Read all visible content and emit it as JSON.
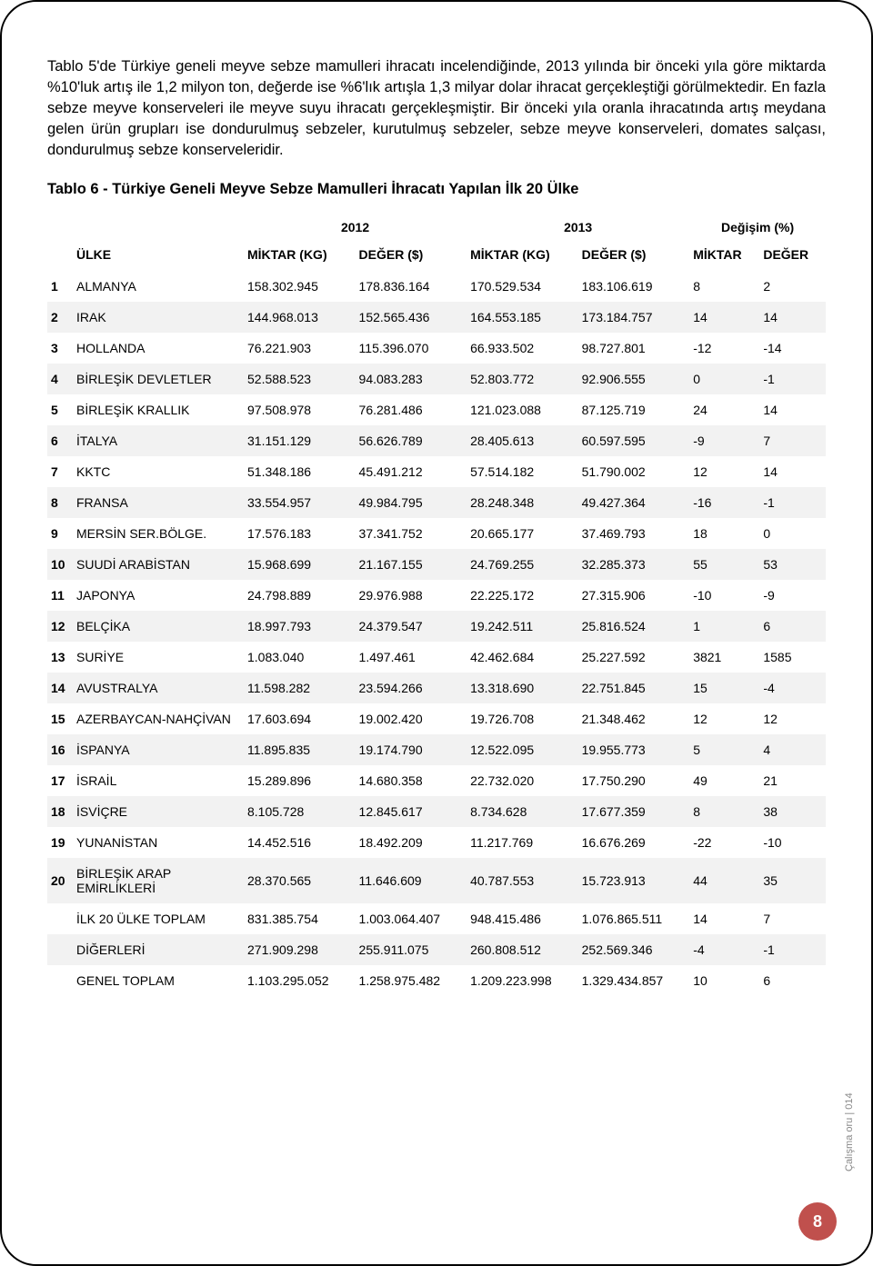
{
  "paragraph": "Tablo 5'de Türkiye geneli meyve sebze mamulleri ihracatı incelendiğinde, 2013 yılında bir önceki yıla göre miktarda %10'luk artış ile 1,2 milyon ton, değerde ise %6'lık artışla 1,3 milyar dolar ihracat gerçekleştiği görülmektedir. En fazla sebze meyve konserveleri ile meyve suyu ihracatı gerçekleşmiştir. Bir önceki yıla oranla ihracatında artış meydana gelen ürün grupları ise dondurulmuş sebzeler, kurutulmuş sebzeler, sebze meyve konserveleri, domates salçası, dondurulmuş sebze konserveleridir.",
  "table_title": "Tablo 6 - Türkiye Geneli Meyve Sebze Mamulleri İhracatı Yapılan İlk 20 Ülke",
  "year_headers": {
    "y2012": "2012",
    "y2013": "2013",
    "change": "Değişim (%)"
  },
  "col_headers": {
    "country": "ÜLKE",
    "qty_kg": "MİKTAR (KG)",
    "val_usd": "DEĞER ($)",
    "qty2_kg": "MİKTAR (KG)",
    "val2_usd": "DEĞER ($)",
    "chg_qty": "MİKTAR",
    "chg_val": "DEĞER"
  },
  "rows": [
    {
      "n": "1",
      "country": "ALMANYA",
      "q12": "158.302.945",
      "v12": "178.836.164",
      "q13": "170.529.534",
      "v13": "183.106.619",
      "cq": "8",
      "cv": "2"
    },
    {
      "n": "2",
      "country": "IRAK",
      "q12": "144.968.013",
      "v12": "152.565.436",
      "q13": "164.553.185",
      "v13": "173.184.757",
      "cq": "14",
      "cv": "14"
    },
    {
      "n": "3",
      "country": "HOLLANDA",
      "q12": "76.221.903",
      "v12": "115.396.070",
      "q13": "66.933.502",
      "v13": "98.727.801",
      "cq": "-12",
      "cv": "-14"
    },
    {
      "n": "4",
      "country": "BİRLEŞİK DEVLETLER",
      "q12": "52.588.523",
      "v12": "94.083.283",
      "q13": "52.803.772",
      "v13": "92.906.555",
      "cq": "0",
      "cv": "-1"
    },
    {
      "n": "5",
      "country": "BİRLEŞİK KRALLIK",
      "q12": "97.508.978",
      "v12": "76.281.486",
      "q13": "121.023.088",
      "v13": "87.125.719",
      "cq": "24",
      "cv": "14"
    },
    {
      "n": "6",
      "country": "İTALYA",
      "q12": "31.151.129",
      "v12": "56.626.789",
      "q13": "28.405.613",
      "v13": "60.597.595",
      "cq": "-9",
      "cv": "7"
    },
    {
      "n": "7",
      "country": "KKTC",
      "q12": "51.348.186",
      "v12": "45.491.212",
      "q13": "57.514.182",
      "v13": "51.790.002",
      "cq": "12",
      "cv": "14"
    },
    {
      "n": "8",
      "country": "FRANSA",
      "q12": "33.554.957",
      "v12": "49.984.795",
      "q13": "28.248.348",
      "v13": "49.427.364",
      "cq": "-16",
      "cv": "-1"
    },
    {
      "n": "9",
      "country": "MERSİN SER.BÖLGE.",
      "q12": "17.576.183",
      "v12": "37.341.752",
      "q13": "20.665.177",
      "v13": "37.469.793",
      "cq": "18",
      "cv": "0"
    },
    {
      "n": "10",
      "country": "SUUDİ ARABİSTAN",
      "q12": "15.968.699",
      "v12": "21.167.155",
      "q13": "24.769.255",
      "v13": "32.285.373",
      "cq": "55",
      "cv": "53"
    },
    {
      "n": "11",
      "country": "JAPONYA",
      "q12": "24.798.889",
      "v12": "29.976.988",
      "q13": "22.225.172",
      "v13": "27.315.906",
      "cq": "-10",
      "cv": "-9"
    },
    {
      "n": "12",
      "country": "BELÇİKA",
      "q12": "18.997.793",
      "v12": "24.379.547",
      "q13": "19.242.511",
      "v13": "25.816.524",
      "cq": "1",
      "cv": "6"
    },
    {
      "n": "13",
      "country": "SURİYE",
      "q12": "1.083.040",
      "v12": "1.497.461",
      "q13": "42.462.684",
      "v13": "25.227.592",
      "cq": "3821",
      "cv": "1585"
    },
    {
      "n": "14",
      "country": "AVUSTRALYA",
      "q12": "11.598.282",
      "v12": "23.594.266",
      "q13": "13.318.690",
      "v13": "22.751.845",
      "cq": "15",
      "cv": "-4"
    },
    {
      "n": "15",
      "country": "AZERBAYCAN-NAHÇİVAN",
      "q12": "17.603.694",
      "v12": "19.002.420",
      "q13": "19.726.708",
      "v13": "21.348.462",
      "cq": "12",
      "cv": "12"
    },
    {
      "n": "16",
      "country": "İSPANYA",
      "q12": "11.895.835",
      "v12": "19.174.790",
      "q13": "12.522.095",
      "v13": "19.955.773",
      "cq": "5",
      "cv": "4"
    },
    {
      "n": "17",
      "country": "İSRAİL",
      "q12": "15.289.896",
      "v12": "14.680.358",
      "q13": "22.732.020",
      "v13": "17.750.290",
      "cq": "49",
      "cv": "21"
    },
    {
      "n": "18",
      "country": "İSVİÇRE",
      "q12": "8.105.728",
      "v12": "12.845.617",
      "q13": "8.734.628",
      "v13": "17.677.359",
      "cq": "8",
      "cv": "38"
    },
    {
      "n": "19",
      "country": "YUNANİSTAN",
      "q12": "14.452.516",
      "v12": "18.492.209",
      "q13": "11.217.769",
      "v13": "16.676.269",
      "cq": "-22",
      "cv": "-10"
    },
    {
      "n": "20",
      "country": "BİRLEŞİK ARAP EMİRLİKLERİ",
      "q12": "28.370.565",
      "v12": "11.646.609",
      "q13": "40.787.553",
      "v13": "15.723.913",
      "cq": "44",
      "cv": "35"
    }
  ],
  "summary": [
    {
      "label": "İLK 20 ÜLKE TOPLAM",
      "q12": "831.385.754",
      "v12": "1.003.064.407",
      "q13": "948.415.486",
      "v13": "1.076.865.511",
      "cq": "14",
      "cv": "7"
    },
    {
      "label": "DİĞERLERİ",
      "q12": "271.909.298",
      "v12": "255.911.075",
      "q13": "260.808.512",
      "v13": "252.569.346",
      "cq": "-4",
      "cv": "-1"
    },
    {
      "label": "GENEL TOPLAM",
      "q12": "1.103.295.052",
      "v12": "1.258.975.482",
      "q13": "1.209.223.998",
      "v13": "1.329.434.857",
      "cq": "10",
      "cv": "6"
    }
  ],
  "colors": {
    "alt_row": "#f2f2f2",
    "page_badge": "#c0504d",
    "text": "#000000"
  },
  "page_number": "8",
  "side_text": "Çalışma oru | 014"
}
